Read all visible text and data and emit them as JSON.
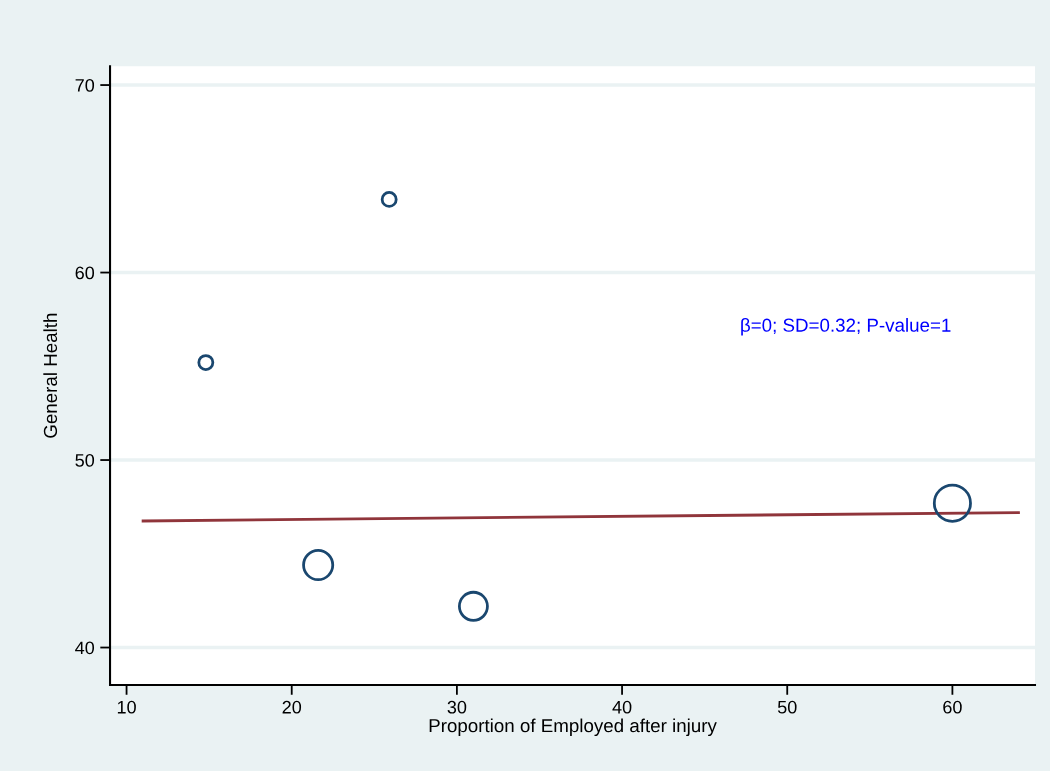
{
  "chart_data": {
    "type": "bubble",
    "xlabel": "Proportion of Employed after injury",
    "ylabel": "General Health",
    "xlim": [
      9,
      65
    ],
    "ylim": [
      38,
      71
    ],
    "xticks": [
      10,
      20,
      30,
      40,
      50,
      60
    ],
    "yticks": [
      40,
      50,
      60,
      70
    ],
    "grid": "y",
    "annotations": [
      "β=0; SD=0.32; P-value=1"
    ],
    "series": [
      {
        "marker": "circle",
        "color": "#1a476f",
        "x": [
          14.8,
          25.9,
          21.6,
          31,
          60
        ],
        "values": [
          55.2,
          63.9,
          44.4,
          42.2,
          47.7
        ],
        "sizes": [
          0.15,
          0.15,
          0.65,
          0.6,
          1
        ]
      },
      {
        "type": "line",
        "line_style": "solid",
        "color": "#90353b",
        "x": [
          11,
          64
        ],
        "values": [
          46.75,
          47.2
        ]
      }
    ]
  }
}
